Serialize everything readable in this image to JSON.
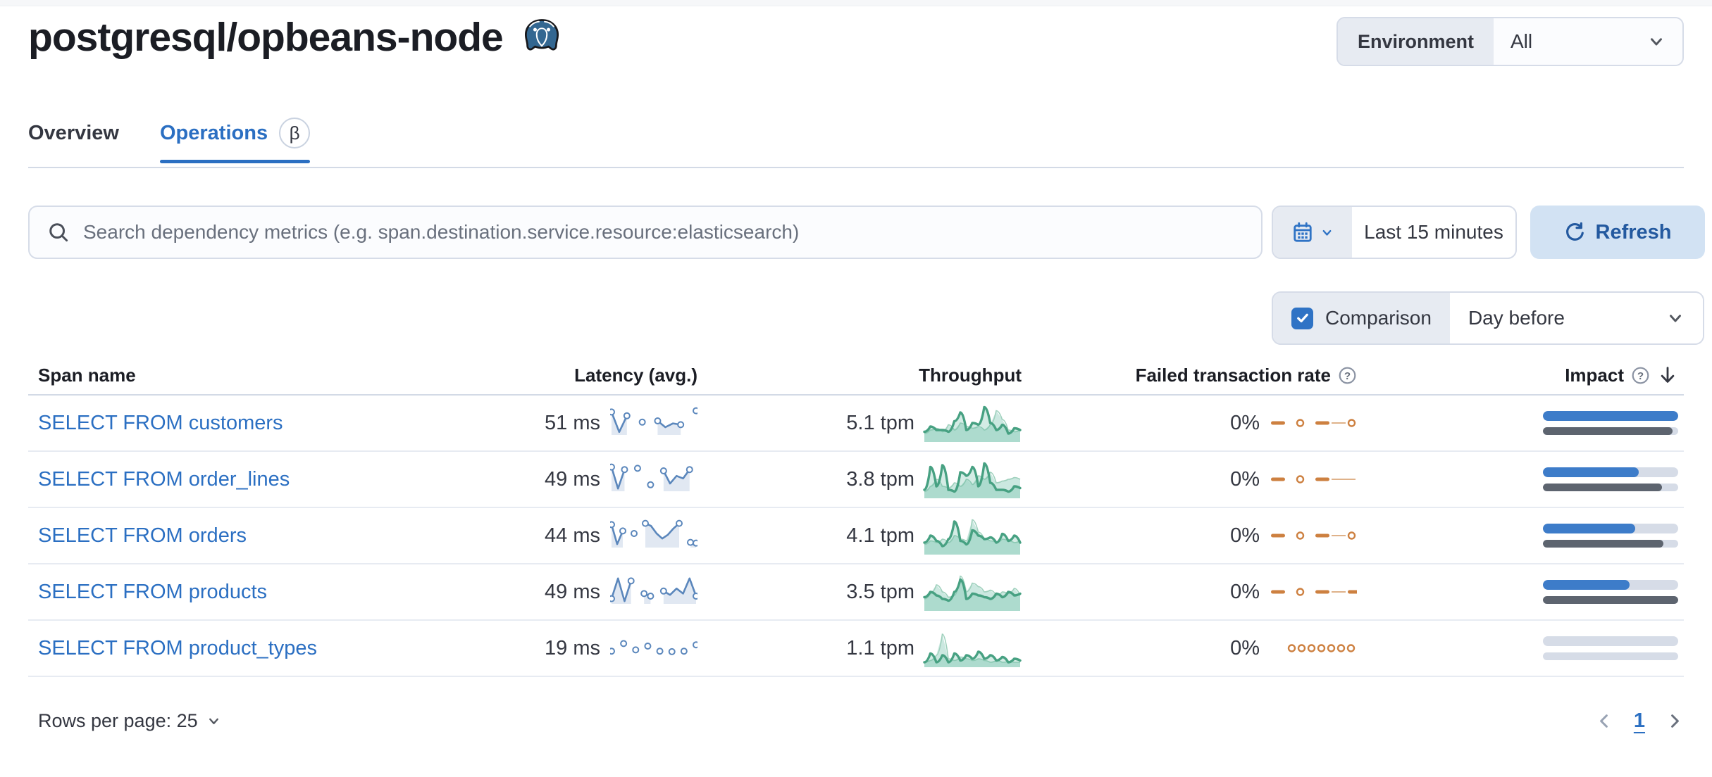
{
  "page": {
    "title": "postgresql/opbeans-node"
  },
  "environment": {
    "label": "Environment",
    "value": "All"
  },
  "tabs": [
    {
      "label": "Overview",
      "active": false
    },
    {
      "label": "Operations",
      "active": true,
      "beta": "β"
    }
  ],
  "search": {
    "placeholder": "Search dependency metrics (e.g. span.destination.service.resource:elasticsearch)"
  },
  "time": {
    "range": "Last 15 minutes",
    "refresh_label": "Refresh"
  },
  "comparison": {
    "label": "Comparison",
    "value": "Day before",
    "checked": true
  },
  "table": {
    "columns": [
      "Span name",
      "Latency (avg.)",
      "Throughput",
      "Failed transaction rate",
      "Impact"
    ],
    "rows": [
      {
        "name": "SELECT FROM customers",
        "latency": "51 ms",
        "throughput": "5.1 tpm",
        "failed": "0%",
        "impact": 100,
        "impact_prev": 96,
        "latency_spark": [
          0.85,
          0.06,
          0.7,
          null,
          0.45,
          null,
          0.5,
          0.25,
          0.4,
          0.35,
          null,
          0.9
        ],
        "throughput_spark": [
          0.25,
          0.4,
          0.3,
          0.3,
          0.25,
          0.55,
          0.8,
          0.3,
          0.5,
          0.45,
          0.95,
          0.5,
          0.3,
          0.45,
          0.2,
          0.35,
          0.3
        ],
        "throughput_spark_prev": [
          0.2,
          0.3,
          0.35,
          0.25,
          0.45,
          0.3,
          0.5,
          0.4,
          0.35,
          0.4,
          0.3,
          0.45,
          0.85,
          0.6,
          0.3,
          0.25,
          0.3
        ],
        "failed_spark": [
          "d",
          "g",
          "c",
          "g",
          "d",
          "l",
          "c",
          "c"
        ]
      },
      {
        "name": "SELECT FROM order_lines",
        "latency": "49 ms",
        "throughput": "3.8 tpm",
        "failed": "0%",
        "impact": 71,
        "impact_prev": 88,
        "latency_spark": [
          0.9,
          0.05,
          0.8,
          null,
          0.85,
          null,
          0.2,
          null,
          0.75,
          0.25,
          0.55,
          0.45,
          0.8,
          null
        ],
        "throughput_spark": [
          0.2,
          0.85,
          0.3,
          0.9,
          0.2,
          0.15,
          0.7,
          0.6,
          0.85,
          0.3,
          0.95,
          0.4,
          0.2,
          0.2,
          0.15,
          0.3,
          0.25
        ],
        "throughput_spark_prev": [
          0.15,
          0.3,
          0.5,
          0.3,
          0.25,
          0.4,
          0.3,
          0.5,
          0.35,
          0.6,
          0.5,
          0.7,
          0.4,
          0.45,
          0.5,
          0.55,
          0.5
        ],
        "failed_spark": [
          "d",
          "g",
          "c",
          "g",
          "d",
          "L",
          "c"
        ]
      },
      {
        "name": "SELECT FROM orders",
        "latency": "44 ms",
        "throughput": "4.1 tpm",
        "failed": "0%",
        "impact": 68,
        "impact_prev": 89,
        "latency_spark": [
          0.85,
          0.08,
          0.6,
          null,
          0.5,
          null,
          0.9,
          0.8,
          0.5,
          0.3,
          0.45,
          0.7,
          0.9,
          null,
          0.15,
          0.12
        ],
        "throughput_spark": [
          0.3,
          0.5,
          0.35,
          0.2,
          0.4,
          0.9,
          0.35,
          0.25,
          0.65,
          0.5,
          0.4,
          0.45,
          0.3,
          0.55,
          0.35,
          0.5,
          0.3
        ],
        "throughput_spark_prev": [
          0.25,
          0.35,
          0.3,
          0.4,
          0.3,
          0.5,
          0.4,
          0.35,
          0.95,
          0.6,
          0.4,
          0.35,
          0.3,
          0.4,
          0.35,
          0.3,
          0.35
        ],
        "failed_spark": [
          "d",
          "g",
          "c",
          "g",
          "d",
          "l",
          "c",
          "c"
        ]
      },
      {
        "name": "SELECT FROM products",
        "latency": "49 ms",
        "throughput": "3.5 tpm",
        "failed": "0%",
        "impact": 64,
        "impact_prev": 100,
        "latency_spark": [
          0.15,
          0.95,
          0.05,
          0.85,
          null,
          0.35,
          0.25,
          null,
          0.45,
          0.3,
          0.55,
          0.35,
          0.95,
          0.25
        ],
        "throughput_spark": [
          0.35,
          0.5,
          0.4,
          0.3,
          0.25,
          0.5,
          0.85,
          0.3,
          0.45,
          0.4,
          0.35,
          0.3,
          0.45,
          0.35,
          0.5,
          0.4,
          0.45
        ],
        "throughput_spark_prev": [
          0.3,
          0.45,
          0.7,
          0.5,
          0.35,
          0.4,
          0.95,
          0.5,
          0.75,
          0.65,
          0.5,
          0.55,
          0.4,
          0.5,
          0.45,
          0.6,
          0.4
        ],
        "failed_spark": [
          "d",
          "g",
          "c",
          "g",
          "d",
          "l",
          "d"
        ]
      },
      {
        "name": "SELECT FROM product_types",
        "latency": "19 ms",
        "throughput": "1.1 tpm",
        "failed": "0%",
        "impact": 0,
        "impact_prev": 0,
        "latency_spark": [
          0.3,
          null,
          0.6,
          null,
          0.35,
          null,
          0.5,
          null,
          0.3,
          null,
          0.28,
          null,
          0.3,
          null,
          0.55
        ],
        "throughput_spark": [
          0.1,
          0.35,
          0.1,
          0.3,
          0.1,
          0.35,
          0.15,
          0.3,
          0.2,
          0.4,
          0.2,
          0.3,
          0.15,
          0.25,
          0.1,
          0.2,
          0.15
        ],
        "throughput_spark_prev": [
          0.1,
          0.15,
          0.3,
          0.9,
          0.2,
          0.15,
          0.25,
          0.2,
          0.15,
          0.2,
          0.15,
          0.1,
          0.15,
          0.1,
          0.12,
          0.1,
          0.1
        ],
        "failed_spark": [
          "c",
          "c",
          "c",
          "c",
          "c",
          "c",
          "c"
        ]
      }
    ]
  },
  "footer": {
    "rows_per_page_label": "Rows per page: 25",
    "page": "1"
  },
  "colors": {
    "link": "#2b6fc2",
    "impact_blue": "#3d7cc9",
    "impact_gray": "#5d646f",
    "impact_track": "#d6dce7",
    "green_line": "#47a182",
    "green_fill": "rgba(84,179,153,0.25)",
    "green_prev_fill": "rgba(84,179,153,0.30)",
    "spark_blue": "#5b87bc",
    "spark_blue_fill": "#e1e8f2",
    "orange": "#cd8040",
    "orange_light": "#dfb28a",
    "refresh_bg": "#d2e2f3",
    "refresh_fg": "#23599f",
    "checkbox_blue": "#2f73c5",
    "elephant_blue": "#336791"
  }
}
